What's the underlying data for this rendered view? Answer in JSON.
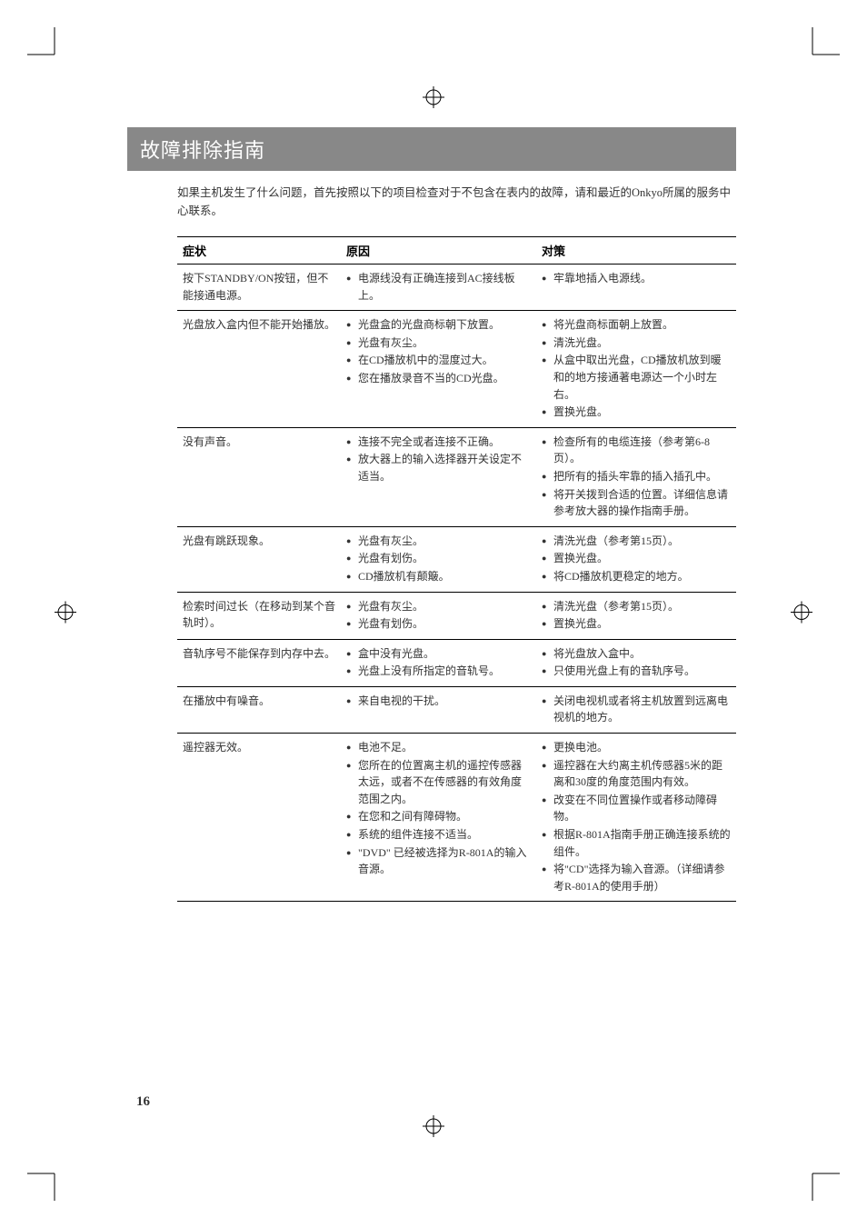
{
  "title": "故障排除指南",
  "intro": "如果主机发生了什么问题，首先按照以下的项目检查对于不包含在表内的故障，请和最近的Onkyo所属的服务中心联系。",
  "headers": {
    "symptom": "症状",
    "cause": "原因",
    "solution": "对策"
  },
  "rows": [
    {
      "symptom": "按下STANDBY/ON按钮，但不能接通电源。",
      "causes": [
        "电源线没有正确连接到AC接线板上。"
      ],
      "solutions": [
        "牢靠地插入电源线。"
      ]
    },
    {
      "symptom": "光盘放入盒内但不能开始播放。",
      "causes": [
        "光盘盒的光盘商标朝下放置。",
        "光盘有灰尘。",
        "在CD播放机中的湿度过大。",
        "您在播放录音不当的CD光盘。"
      ],
      "solutions": [
        "将光盘商标面朝上放置。",
        "清洗光盘。",
        "从盒中取出光盘，CD播放机放到暖和的地方接通著电源达一个小时左右。",
        "置换光盘。"
      ]
    },
    {
      "symptom": "没有声音。",
      "causes": [
        "连接不完全或者连接不正确。",
        "放大器上的输入选择器开关设定不适当。"
      ],
      "solutions": [
        "检查所有的电缆连接（参考第6-8页）。",
        "把所有的插头牢靠的插入插孔中。",
        "将开关拨到合适的位置。详细信息请参考放大器的操作指南手册。"
      ]
    },
    {
      "symptom": "光盘有跳跃现象。",
      "causes": [
        "光盘有灰尘。",
        "光盘有划伤。",
        "CD播放机有颠簸。"
      ],
      "solutions": [
        "清洗光盘（参考第15页）。",
        "置换光盘。",
        "将CD播放机更稳定的地方。"
      ]
    },
    {
      "symptom": "检索时间过长（在移动到某个音轨时）。",
      "causes": [
        "光盘有灰尘。",
        "光盘有划伤。"
      ],
      "solutions": [
        "清洗光盘（参考第15页）。",
        "置换光盘。"
      ]
    },
    {
      "symptom": "音轨序号不能保存到内存中去。",
      "causes": [
        "盒中没有光盘。",
        "光盘上没有所指定的音轨号。"
      ],
      "solutions": [
        "将光盘放入盒中。",
        "只使用光盘上有的音轨序号。"
      ]
    },
    {
      "symptom": "在播放中有噪音。",
      "causes": [
        "来自电视的干扰。"
      ],
      "solutions": [
        "关闭电视机或者将主机放置到远离电视机的地方。"
      ]
    },
    {
      "symptom": "遥控器无效。",
      "causes": [
        "电池不足。",
        "您所在的位置离主机的遥控传感器太远，或者不在传感器的有效角度范围之内。",
        "在您和之间有障碍物。",
        "系统的组件连接不适当。",
        "\"DVD\" 已经被选择为R-801A的输入音源。"
      ],
      "solutions": [
        "更换电池。",
        "遥控器在大约离主机传感器5米的距离和30度的角度范围内有效。",
        "改变在不同位置操作或者移动障碍物。",
        "根据R-801A指南手册正确连接系统的组件。",
        "将\"CD\"选择为输入音源。（详细请参考R-801A的使用手册）"
      ]
    }
  ],
  "page_number": "16",
  "colors": {
    "title_bg": "#888888",
    "title_fg": "#ffffff",
    "text": "#333333",
    "border": "#000000"
  }
}
